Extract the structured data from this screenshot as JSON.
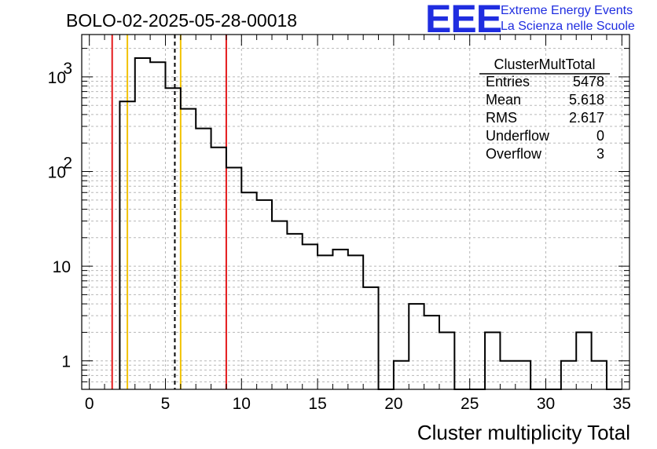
{
  "title": "BOLO-02-2025-05-28-00018",
  "logo": {
    "letters": "EEE",
    "line1": "Extreme Energy Events",
    "line2": "La Scienza nelle Scuole",
    "color": "#1f2de0"
  },
  "stats": {
    "name": "ClusterMultTotal",
    "rows": [
      {
        "label": "Entries",
        "value": "5478"
      },
      {
        "label": "Mean",
        "value": "5.618"
      },
      {
        "label": "RMS",
        "value": "2.617"
      },
      {
        "label": "Underflow",
        "value": "0"
      },
      {
        "label": "Overflow",
        "value": "3"
      }
    ]
  },
  "chart_data": {
    "type": "histogram",
    "xlabel": "Cluster multiplicity Total",
    "ylabel": "",
    "xlim": [
      -0.5,
      35.5
    ],
    "ylim": [
      0.5,
      2800
    ],
    "yscale": "log",
    "grid": true,
    "bin_width": 1,
    "bins": [
      {
        "x": 2.5,
        "y": 550
      },
      {
        "x": 3.5,
        "y": 1580
      },
      {
        "x": 4.5,
        "y": 1430
      },
      {
        "x": 5.5,
        "y": 760
      },
      {
        "x": 6.5,
        "y": 460
      },
      {
        "x": 7.5,
        "y": 285
      },
      {
        "x": 8.5,
        "y": 180
      },
      {
        "x": 9.5,
        "y": 110
      },
      {
        "x": 10.5,
        "y": 60
      },
      {
        "x": 11.5,
        "y": 50
      },
      {
        "x": 12.5,
        "y": 30
      },
      {
        "x": 13.5,
        "y": 22
      },
      {
        "x": 14.5,
        "y": 17
      },
      {
        "x": 15.5,
        "y": 13
      },
      {
        "x": 16.5,
        "y": 15
      },
      {
        "x": 17.5,
        "y": 13
      },
      {
        "x": 18.5,
        "y": 6
      },
      {
        "x": 19.5,
        "y": 0
      },
      {
        "x": 20.5,
        "y": 1
      },
      {
        "x": 21.5,
        "y": 4
      },
      {
        "x": 22.5,
        "y": 3
      },
      {
        "x": 23.5,
        "y": 2
      },
      {
        "x": 24.5,
        "y": 0
      },
      {
        "x": 25.5,
        "y": 0
      },
      {
        "x": 26.5,
        "y": 2
      },
      {
        "x": 27.5,
        "y": 1
      },
      {
        "x": 28.5,
        "y": 1
      },
      {
        "x": 29.5,
        "y": 0
      },
      {
        "x": 30.5,
        "y": 0
      },
      {
        "x": 31.5,
        "y": 1
      },
      {
        "x": 32.5,
        "y": 2
      },
      {
        "x": 33.5,
        "y": 1
      },
      {
        "x": 34.5,
        "y": 0
      }
    ],
    "vlines": [
      {
        "x": 1.5,
        "color": "#e41a1c",
        "style": "solid"
      },
      {
        "x": 9.0,
        "color": "#e41a1c",
        "style": "solid"
      },
      {
        "x": 2.5,
        "color": "#f2c200",
        "style": "solid"
      },
      {
        "x": 6.0,
        "color": "#f2c200",
        "style": "solid"
      },
      {
        "x": 5.618,
        "color": "#000000",
        "style": "dashed"
      }
    ],
    "x_ticks": [
      "0",
      "5",
      "10",
      "15",
      "20",
      "25",
      "30",
      "35"
    ],
    "y_ticks": [
      {
        "base": "1",
        "exp": ""
      },
      {
        "base": "10",
        "exp": ""
      },
      {
        "base": "10",
        "exp": "2"
      },
      {
        "base": "10",
        "exp": "3"
      }
    ]
  }
}
